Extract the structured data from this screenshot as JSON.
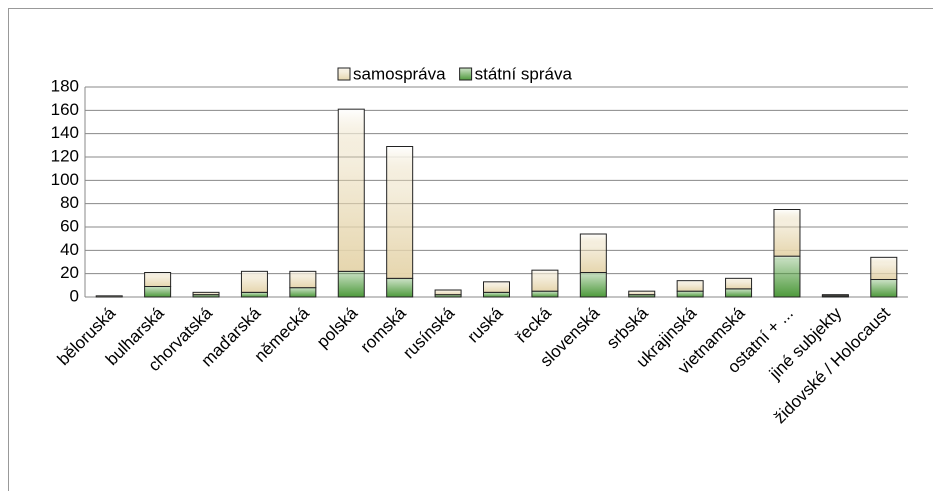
{
  "chart_data": {
    "type": "stacked-bar",
    "categories": [
      "běloruská",
      "bulharská",
      "chorvatská",
      "maďarská",
      "německá",
      "polská",
      "romská",
      "rusínská",
      "ruská",
      "řecká",
      "slovenská",
      "srbská",
      "ukrajinská",
      "vietnamská",
      "ostatní + ...",
      "jiné subjekty",
      "židovské / Holocaust"
    ],
    "series": [
      {
        "name": "státní správa",
        "color": "#4e9a3c",
        "values": [
          0,
          9,
          2,
          4,
          8,
          22,
          16,
          2,
          4,
          5,
          21,
          2,
          5,
          7,
          35,
          1,
          15
        ]
      },
      {
        "name": "samospráva",
        "color": "#e6d6ae",
        "values": [
          1,
          12,
          2,
          18,
          14,
          139,
          113,
          4,
          9,
          18,
          33,
          3,
          9,
          9,
          40,
          1,
          19
        ]
      }
    ],
    "legend_order": [
      "samospráva",
      "státní správa"
    ],
    "ylim": [
      0,
      180
    ],
    "yticks": [
      0,
      20,
      40,
      60,
      80,
      100,
      120,
      140,
      160,
      180
    ],
    "grid": true,
    "legend": "top"
  }
}
